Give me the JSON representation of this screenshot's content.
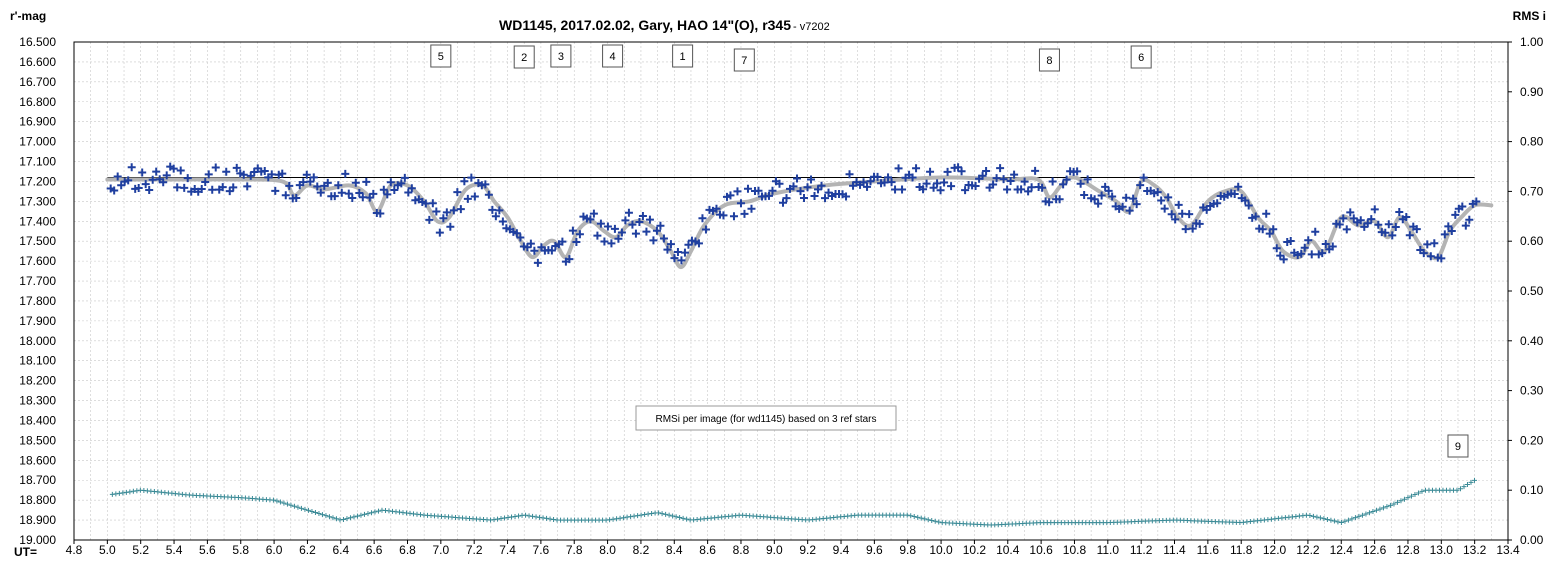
{
  "chart_data": {
    "type": "scatter",
    "title": "WD1145, 2017.02.02,  Gary,  HAO 14\"(O),  r345",
    "version": " - v7202",
    "ylabel_left": "r'-mag",
    "ylabel_right": "RMS i",
    "xlabel": "UT=",
    "x_range": [
      4.8,
      13.4
    ],
    "x_ticks": [
      "4.8",
      "5.0",
      "5.2",
      "5.4",
      "5.6",
      "5.8",
      "6.0",
      "6.2",
      "6.4",
      "6.6",
      "6.8",
      "7.0",
      "7.2",
      "7.4",
      "7.6",
      "7.8",
      "8.0",
      "8.2",
      "8.4",
      "8.6",
      "8.8",
      "9.0",
      "9.2",
      "9.4",
      "9.6",
      "9.8",
      "10.0",
      "10.2",
      "10.4",
      "10.6",
      "10.8",
      "11.0",
      "11.2",
      "11.4",
      "11.6",
      "11.8",
      "12.0",
      "12.2",
      "12.4",
      "12.6",
      "12.8",
      "13.0",
      "13.2",
      "13.4"
    ],
    "y_left_range": [
      19.0,
      16.5
    ],
    "y_left_ticks": [
      "16.500",
      "16.600",
      "16.700",
      "16.800",
      "16.900",
      "17.000",
      "17.100",
      "17.200",
      "17.300",
      "17.400",
      "17.500",
      "17.600",
      "17.700",
      "17.800",
      "17.900",
      "18.000",
      "18.100",
      "18.200",
      "18.300",
      "18.400",
      "18.500",
      "18.600",
      "18.700",
      "18.800",
      "18.900",
      "19.000"
    ],
    "y_right_range": [
      0.0,
      1.0
    ],
    "y_right_ticks": [
      "1.00",
      "0.90",
      "0.80",
      "0.70",
      "0.60",
      "0.50",
      "0.40",
      "0.30",
      "0.20",
      "0.10",
      "0.00"
    ],
    "grid": true,
    "reference_level": 17.18,
    "model_curve": {
      "x": [
        5.0,
        5.4,
        5.8,
        6.05,
        6.12,
        6.2,
        6.3,
        6.45,
        6.55,
        6.62,
        6.7,
        6.8,
        6.9,
        6.98,
        7.05,
        7.15,
        7.25,
        7.32,
        7.4,
        7.48,
        7.55,
        7.62,
        7.68,
        7.75,
        7.82,
        7.9,
        7.98,
        8.05,
        8.12,
        8.2,
        8.3,
        8.38,
        8.44,
        8.5,
        8.58,
        8.7,
        8.85,
        9.0,
        9.3,
        9.6,
        10.0,
        10.4,
        10.58,
        10.65,
        10.72,
        10.8,
        10.95,
        11.05,
        11.13,
        11.2,
        11.28,
        11.35,
        11.42,
        11.5,
        11.6,
        11.7,
        11.8,
        11.9,
        11.98,
        12.05,
        12.15,
        12.22,
        12.3,
        12.4,
        12.5,
        12.6,
        12.68,
        12.75,
        12.82,
        12.9,
        12.98,
        13.05,
        13.12,
        13.2,
        13.3
      ],
      "y": [
        17.19,
        17.19,
        17.19,
        17.2,
        17.27,
        17.22,
        17.24,
        17.22,
        17.26,
        17.35,
        17.22,
        17.22,
        17.3,
        17.4,
        17.38,
        17.24,
        17.22,
        17.3,
        17.38,
        17.5,
        17.58,
        17.52,
        17.5,
        17.58,
        17.45,
        17.4,
        17.45,
        17.48,
        17.42,
        17.4,
        17.45,
        17.55,
        17.63,
        17.55,
        17.42,
        17.32,
        17.3,
        17.26,
        17.22,
        17.2,
        17.18,
        17.19,
        17.19,
        17.28,
        17.22,
        17.18,
        17.25,
        17.3,
        17.35,
        17.2,
        17.22,
        17.28,
        17.38,
        17.42,
        17.3,
        17.25,
        17.25,
        17.38,
        17.45,
        17.55,
        17.58,
        17.5,
        17.55,
        17.38,
        17.42,
        17.4,
        17.48,
        17.38,
        17.45,
        17.55,
        17.58,
        17.45,
        17.38,
        17.32,
        17.32
      ]
    },
    "event_labels": [
      "5",
      "2",
      "3",
      "4",
      "1",
      "7",
      "8",
      "6",
      "9"
    ],
    "note": "RMSi per image (for wd1145) based on 3 ref stars",
    "colors": {
      "data": "#1f3f9f",
      "model": "#b4b4b4",
      "rms": "#3a8a96",
      "reference_line": "#000000",
      "grid": "#c8c8c8"
    }
  }
}
